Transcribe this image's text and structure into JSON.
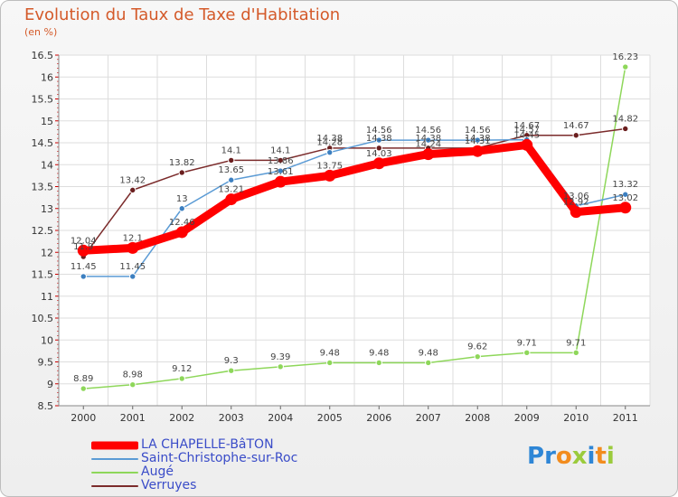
{
  "chart_data": {
    "type": "line",
    "title": "Evolution du Taux de Taxe d'Habitation",
    "ylabel": "(en %)",
    "xlabel": "",
    "x": [
      "2000",
      "2001",
      "2002",
      "2003",
      "2004",
      "2005",
      "2006",
      "2007",
      "2008",
      "2009",
      "2010",
      "2011"
    ],
    "ylim": [
      8.5,
      16.5
    ],
    "yticks": [
      "8.5",
      "9",
      "9.5",
      "10",
      "10.5",
      "11",
      "11.5",
      "12",
      "12.5",
      "13",
      "13.5",
      "14",
      "14.5",
      "15",
      "15.5",
      "16",
      "16.5"
    ],
    "legend_position": "bottom-left",
    "grid": true,
    "series": [
      {
        "name": "LA CHAPELLE-BâTON",
        "color": "#ff0000",
        "values": [
          12.04,
          12.1,
          12.46,
          13.21,
          13.61,
          13.75,
          14.03,
          14.24,
          14.31,
          14.45,
          12.92,
          13.02
        ],
        "labels": [
          "12.04",
          "12.1",
          "12.46",
          "13.21",
          "13.61",
          "13.75",
          "14.03",
          "14.24",
          "14.31",
          "14.45",
          "12.92",
          "13.02"
        ]
      },
      {
        "name": "Saint-Christophe-sur-Roc",
        "color": "#5b9bd5",
        "values": [
          11.45,
          11.45,
          13.0,
          13.65,
          13.86,
          14.28,
          14.56,
          14.56,
          14.56,
          14.57,
          13.06,
          13.32
        ],
        "labels": [
          "11.45",
          "11.45",
          "13",
          "13.65",
          "13.86",
          "14.28",
          "14.56",
          "14.56",
          "14.56",
          "14.57",
          "13.06",
          "13.32"
        ]
      },
      {
        "name": "Augé",
        "color": "#8ed75a",
        "values": [
          8.89,
          8.98,
          9.12,
          9.3,
          9.39,
          9.48,
          9.48,
          9.48,
          9.62,
          9.71,
          9.71,
          16.23
        ],
        "labels": [
          "8.89",
          "8.98",
          "9.12",
          "9.3",
          "9.39",
          "9.48",
          "9.48",
          "9.48",
          "9.62",
          "9.71",
          "9.71",
          "16.23"
        ]
      },
      {
        "name": "Verruyes",
        "color": "#7b2b2b",
        "values": [
          11.9,
          13.42,
          13.82,
          14.1,
          14.1,
          14.38,
          14.38,
          14.38,
          14.38,
          14.67,
          14.67,
          14.82
        ],
        "labels": [
          "11.9",
          "13.42",
          "13.82",
          "14.1",
          "14.1",
          "14.38",
          "14.38",
          "14.38",
          "14.38",
          "14.67",
          "14.67",
          "14.82"
        ]
      }
    ]
  },
  "legend": {
    "items": [
      {
        "label": "LA CHAPELLE-BâTON",
        "color": "#ff0000"
      },
      {
        "label": "Saint-Christophe-sur-Roc",
        "color": "#5b9bd5"
      },
      {
        "label": "Augé",
        "color": "#8ed75a"
      },
      {
        "label": "Verruyes",
        "color": "#7b2b2b"
      }
    ]
  },
  "logo": {
    "letters": [
      {
        "char": "P",
        "color": "#2e86d6"
      },
      {
        "char": "r",
        "color": "#2e86d6"
      },
      {
        "char": "o",
        "color": "#f28c1e"
      },
      {
        "char": "x",
        "color": "#9bcb3c"
      },
      {
        "char": "i",
        "color": "#2e86d6"
      },
      {
        "char": "t",
        "color": "#f28c1e"
      },
      {
        "char": "i",
        "color": "#9bcb3c"
      }
    ]
  }
}
